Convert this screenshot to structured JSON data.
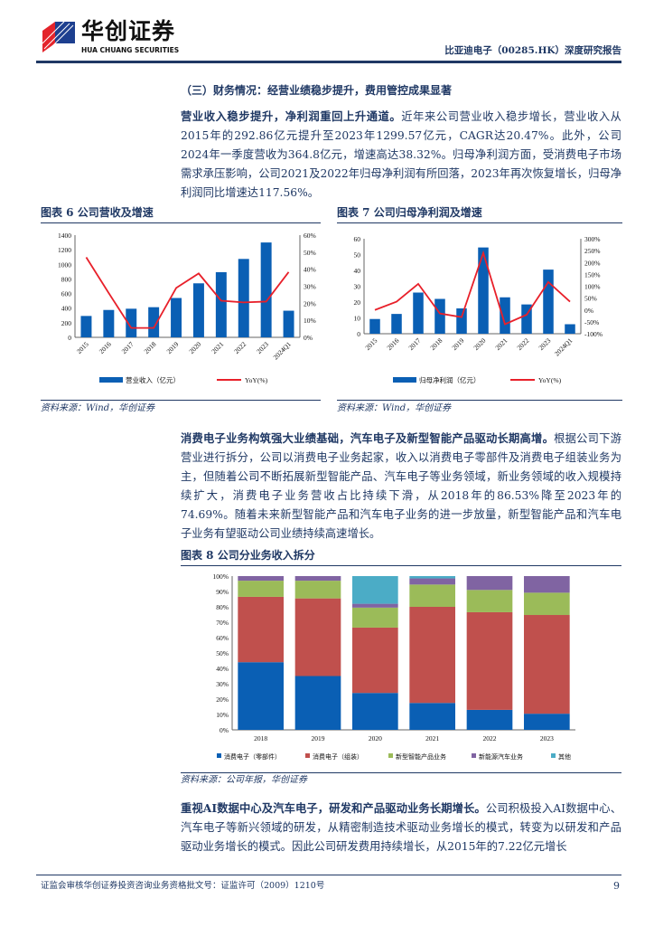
{
  "header": {
    "logo_cn": "华创证券",
    "logo_en": "HUA CHUANG SECURITIES",
    "report_title": "比亚迪电子（00285.HK）深度研究报告"
  },
  "section_heading": "（三）财务情况：经营业绩稳步提升，费用管控成果显著",
  "para1": {
    "lead": "营业收入稳步提升，净利润重回上升通道。",
    "body": "近年来公司营业收入稳步增长，营业收入从2015年的292.86亿元提升至2023年1299.57亿元，CAGR达20.47%。此外，公司2024年一季度营收为364.8亿元，增速高达38.32%。归母净利润方面，受消费电子市场需求承压影响，公司2021及2022年归母净利润有所回落，2023年再次恢复增长，归母净利润同比增速达117.56%。"
  },
  "para2": {
    "lead": "消费电子业务构筑强大业绩基础，汽车电子及新型智能产品驱动长期高增。",
    "body": "根据公司下游营业进行拆分，公司以消费电子业务起家，收入以消费电子零部件及消费电子组装业务为主，但随着公司不断拓展新型智能产品、汽车电子等业务领域，新业务领域的收入规模持续扩大，消费电子业务营收占比持续下滑，从2018年的86.53%降至2023年的74.69%。随着未来新型智能产品和汽车电子业务的进一步放量，新型智能产品和汽车电子业务有望驱动公司业绩持续高速增长。"
  },
  "para3": {
    "lead": "重视AI数据中心及汽车电子，研发和产品驱动业务长期增长。",
    "body": "公司积极投入AI数据中心、汽车电子等新兴领域的研发，从精密制造技术驱动业务增长的模式，转变为以研发和产品驱动业务增长的模式。因此公司研发费用持续增长，从2015年的7.22亿元增长"
  },
  "footer": {
    "text": "证监会审核华创证券投资咨询业务资格批文号：证监许可（2009）1210号",
    "page": "9"
  },
  "chart_data": [
    {
      "type": "bar+line",
      "title": "图表 6 公司营收及增速",
      "source": "资料来源：Wind，华创证券",
      "categories": [
        "2015",
        "2016",
        "2017",
        "2018",
        "2019",
        "2020",
        "2021",
        "2022",
        "2023",
        "2024Q1"
      ],
      "series": [
        {
          "name": "营业收入（亿元）",
          "axis": "left",
          "color": "#0a5fb4",
          "values": [
            292.86,
            375,
            392,
            413,
            539,
            740,
            893,
            1074,
            1299.57,
            364.8
          ]
        },
        {
          "name": "YoY(%)",
          "axis": "right",
          "color": "#e8202a",
          "values": [
            47,
            26,
            5.5,
            5.5,
            29,
            37.5,
            21.5,
            20.5,
            21,
            38.32
          ]
        }
      ],
      "ylim": [
        0,
        1400
      ],
      "yticks": [
        0,
        200,
        400,
        600,
        800,
        1000,
        1200,
        1400
      ],
      "y2lim": [
        0,
        60
      ],
      "y2ticks": [
        "0%",
        "10%",
        "20%",
        "30%",
        "40%",
        "50%",
        "60%"
      ],
      "legend": "bottom"
    },
    {
      "type": "bar+line",
      "title": "图表 7 公司归母净利润及增速",
      "source": "资料来源：Wind，华创证券",
      "categories": [
        "2015",
        "2016",
        "2017",
        "2018",
        "2019",
        "2020",
        "2021",
        "2022",
        "2023",
        "2024Q1"
      ],
      "series": [
        {
          "name": "归母净利润（亿元）",
          "axis": "left",
          "color": "#0a5fb4",
          "values": [
            9.3,
            12.5,
            26,
            22,
            16,
            54.5,
            23,
            18.5,
            40.5,
            6
          ]
        },
        {
          "name": "YoY(%)",
          "axis": "right",
          "color": "#e8202a",
          "values": [
            0,
            35,
            110,
            -15,
            -30,
            240,
            -60,
            -20,
            117.56,
            35
          ]
        }
      ],
      "ylim": [
        0,
        60
      ],
      "yticks": [
        0,
        10,
        20,
        30,
        40,
        50,
        60
      ],
      "y2lim": [
        -100,
        300
      ],
      "y2ticks": [
        "-100%",
        "-50%",
        "0%",
        "50%",
        "100%",
        "150%",
        "200%",
        "250%",
        "300%"
      ],
      "legend": "bottom"
    },
    {
      "type": "stacked-bar",
      "title": "图表 8 公司分业务收入拆分",
      "source": "资料来源：公司年报，华创证券",
      "categories": [
        "2018",
        "2019",
        "2020",
        "2021",
        "2022",
        "2023"
      ],
      "series": [
        {
          "name": "消费电子（零部件）",
          "color": "#0a5fb4",
          "values": [
            44,
            35,
            24,
            17.5,
            13,
            10.5
          ]
        },
        {
          "name": "消费电子（组装）",
          "color": "#c0504d",
          "values": [
            42.5,
            50.5,
            42.5,
            62.5,
            63.5,
            64.2
          ]
        },
        {
          "name": "新型智能产品业务",
          "color": "#9bbb59",
          "values": [
            10.5,
            11.5,
            13,
            14.5,
            14.5,
            14.5
          ]
        },
        {
          "name": "新能源汽车业务",
          "color": "#8064a2",
          "values": [
            3,
            3,
            2.5,
            4,
            9,
            10.8
          ]
        },
        {
          "name": "其他",
          "color": "#4bacc6",
          "values": [
            0,
            0,
            18,
            1.5,
            0,
            0
          ]
        }
      ],
      "ylim": [
        0,
        100
      ],
      "yticks": [
        "0%",
        "10%",
        "20%",
        "30%",
        "40%",
        "50%",
        "60%",
        "70%",
        "80%",
        "90%",
        "100%"
      ],
      "legend": "bottom"
    }
  ]
}
